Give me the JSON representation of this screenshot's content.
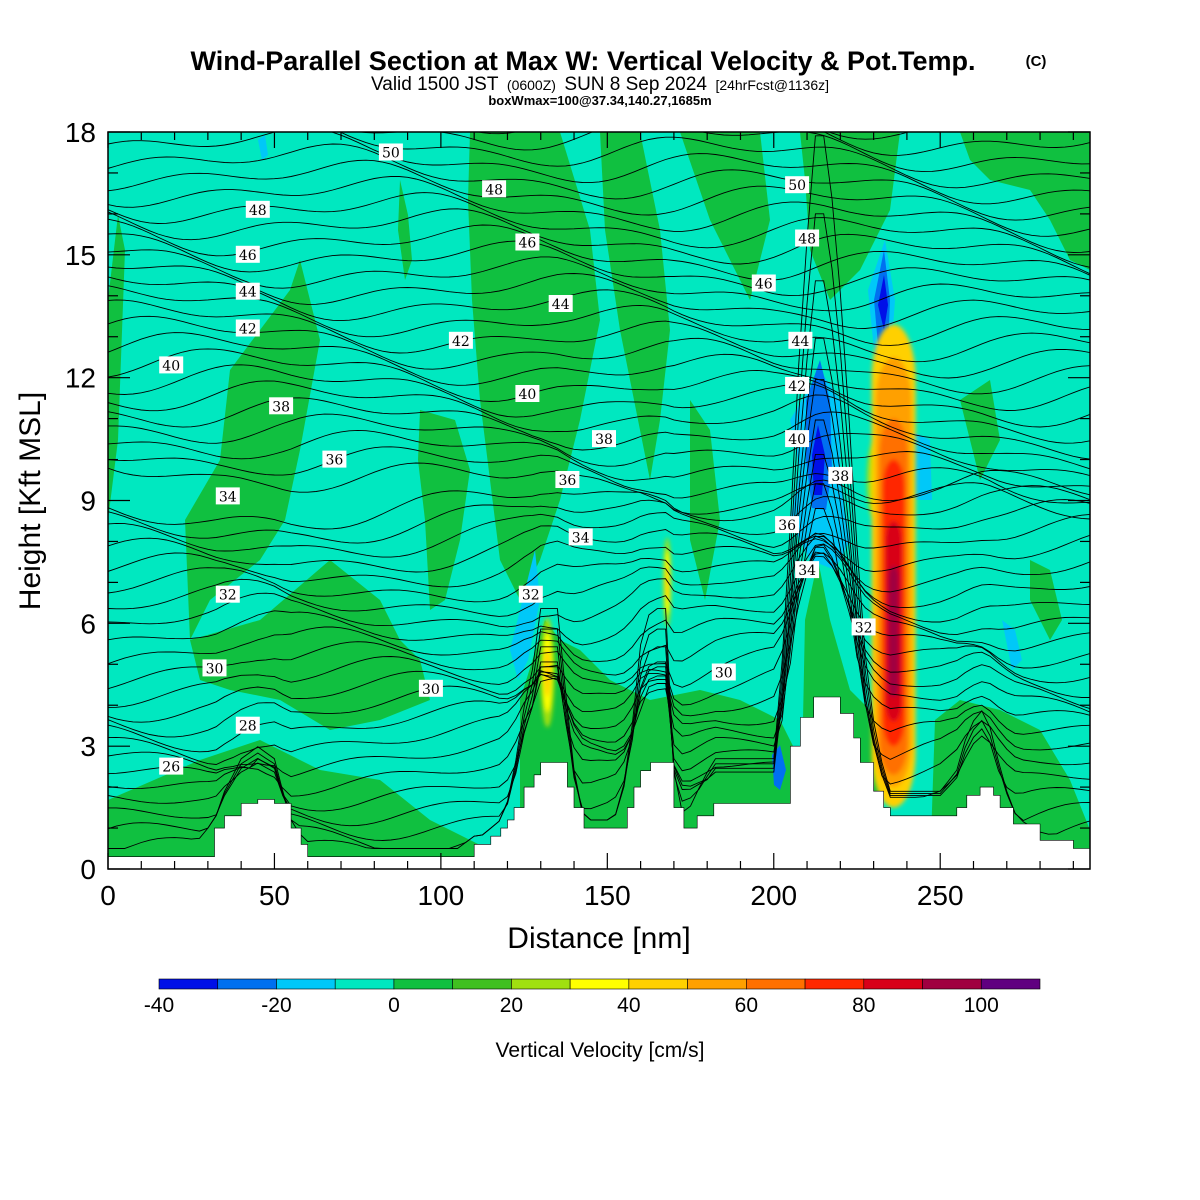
{
  "title": {
    "main": "Wind-Parallel Section at Max W: Vertical Velocity & Pot.Temp.",
    "copyright": "(C)",
    "valid_prefix": "Valid 1500 JST",
    "valid_utc": "(0600Z)",
    "valid_date": "SUN 8 Sep 2024",
    "forecast": "[24hrFcst@1136z]",
    "box": "boxWmax=100@37.34,140.27,1685m"
  },
  "chart_data": {
    "type": "heatmap",
    "xlabel": "Distance [nm]",
    "ylabel": "Height [Kft MSL]",
    "xlim": [
      0,
      295
    ],
    "ylim": [
      0,
      18
    ],
    "x_ticks": [
      0,
      50,
      100,
      150,
      200,
      250
    ],
    "y_ticks": [
      0,
      3,
      6,
      9,
      12,
      15,
      18
    ],
    "colorbar": {
      "title": "Vertical Velocity [cm/s]",
      "bounds": [
        -40,
        -30,
        -20,
        -10,
        0,
        10,
        20,
        30,
        40,
        50,
        60,
        70,
        80,
        90,
        100,
        110
      ],
      "tick_values": [
        -40,
        -20,
        0,
        20,
        40,
        60,
        80,
        100
      ],
      "tick_labels": [
        "-40",
        "-20",
        "0",
        "20",
        "40",
        "60",
        "80",
        "100"
      ],
      "colors": [
        "#0010e8",
        "#0070f0",
        "#00c8f8",
        "#00e8c0",
        "#10c040",
        "#40c020",
        "#a0e010",
        "#ffff00",
        "#ffd000",
        "#ffa000",
        "#ff7000",
        "#ff2800",
        "#d80018",
        "#a00040",
        "#600080"
      ],
      "background_level_color": "#00e8c0"
    },
    "terrain_kft": {
      "x": [
        0,
        10,
        25,
        32,
        35,
        40,
        45,
        50,
        55,
        58,
        60,
        65,
        70,
        80,
        90,
        100,
        105,
        110,
        112,
        115,
        118,
        120,
        122,
        125,
        128,
        130,
        135,
        138,
        140,
        143,
        148,
        152,
        156,
        158,
        160,
        163,
        168,
        170,
        173,
        177,
        182,
        186,
        190,
        195,
        200,
        205,
        208,
        212,
        216,
        220,
        224,
        226,
        230,
        233,
        235,
        240,
        245,
        250,
        255,
        258,
        262,
        266,
        268,
        272,
        280,
        290,
        295
      ],
      "h": [
        0.3,
        0.3,
        0.3,
        1.0,
        1.3,
        1.6,
        1.7,
        1.6,
        1.0,
        0.6,
        0.3,
        0.3,
        0.3,
        0.3,
        0.3,
        0.3,
        0.3,
        0.6,
        0.6,
        0.8,
        1.0,
        1.2,
        1.5,
        2.0,
        2.3,
        2.6,
        2.6,
        2.0,
        1.5,
        1.0,
        1.0,
        1.0,
        1.5,
        2.0,
        2.4,
        2.6,
        2.6,
        1.5,
        1.0,
        1.3,
        1.6,
        1.6,
        1.6,
        1.6,
        1.6,
        3.0,
        3.7,
        4.2,
        4.2,
        3.8,
        3.2,
        2.6,
        1.9,
        1.5,
        1.3,
        1.3,
        1.3,
        1.3,
        1.5,
        1.8,
        2.0,
        1.8,
        1.5,
        1.1,
        0.7,
        0.5,
        0.5
      ]
    },
    "vertical_velocity_features": [
      {
        "label": "updraft-max-central",
        "x": 236,
        "z": 4.8,
        "peak_cm_s": 100
      },
      {
        "label": "updraft-upper-central",
        "x": 234,
        "z": 9.5,
        "peak_cm_s": 50
      },
      {
        "label": "updraft-mid",
        "x": 168,
        "z": 7.0,
        "peak_cm_s": 40
      },
      {
        "label": "updraft-low",
        "x": 132,
        "z": 4.8,
        "peak_cm_s": 40
      },
      {
        "label": "downdraft-upper",
        "x": 213,
        "z": 10.5,
        "peak_cm_s": -40
      },
      {
        "label": "downdraft-top",
        "x": 233,
        "z": 13.8,
        "peak_cm_s": -40
      },
      {
        "label": "downdraft-low",
        "x": 203,
        "z": 2.5,
        "peak_cm_s": -20
      }
    ],
    "potential_temperature_contours_C": {
      "levels": [
        26,
        28,
        30,
        32,
        34,
        36,
        38,
        40,
        42,
        44,
        46,
        48,
        50
      ],
      "labels": [
        {
          "text": "50",
          "x": 85,
          "z": 17.5
        },
        {
          "text": "48",
          "x": 45,
          "z": 16.1
        },
        {
          "text": "48",
          "x": 116,
          "z": 16.6
        },
        {
          "text": "50",
          "x": 207,
          "z": 16.7
        },
        {
          "text": "46",
          "x": 42,
          "z": 15.0
        },
        {
          "text": "46",
          "x": 126,
          "z": 15.3
        },
        {
          "text": "48",
          "x": 210,
          "z": 15.4
        },
        {
          "text": "44",
          "x": 42,
          "z": 14.1
        },
        {
          "text": "44",
          "x": 136,
          "z": 13.8
        },
        {
          "text": "46",
          "x": 197,
          "z": 14.3
        },
        {
          "text": "42",
          "x": 42,
          "z": 13.2
        },
        {
          "text": "42",
          "x": 106,
          "z": 12.9
        },
        {
          "text": "44",
          "x": 208,
          "z": 12.9
        },
        {
          "text": "40",
          "x": 19,
          "z": 12.3
        },
        {
          "text": "42",
          "x": 207,
          "z": 11.8
        },
        {
          "text": "38",
          "x": 52,
          "z": 11.3
        },
        {
          "text": "40",
          "x": 126,
          "z": 11.6
        },
        {
          "text": "40",
          "x": 207,
          "z": 10.5
        },
        {
          "text": "38",
          "x": 149,
          "z": 10.5
        },
        {
          "text": "36",
          "x": 68,
          "z": 10.0
        },
        {
          "text": "36",
          "x": 138,
          "z": 9.5
        },
        {
          "text": "38",
          "x": 220,
          "z": 9.6
        },
        {
          "text": "34",
          "x": 36,
          "z": 9.1
        },
        {
          "text": "34",
          "x": 142,
          "z": 8.1
        },
        {
          "text": "36",
          "x": 204,
          "z": 8.4
        },
        {
          "text": "32",
          "x": 36,
          "z": 6.7
        },
        {
          "text": "32",
          "x": 127,
          "z": 6.7
        },
        {
          "text": "34",
          "x": 210,
          "z": 7.3
        },
        {
          "text": "32",
          "x": 227,
          "z": 5.9
        },
        {
          "text": "30",
          "x": 32,
          "z": 4.9
        },
        {
          "text": "30",
          "x": 97,
          "z": 4.4
        },
        {
          "text": "30",
          "x": 185,
          "z": 4.8
        },
        {
          "text": "28",
          "x": 42,
          "z": 3.5
        },
        {
          "text": "26",
          "x": 19,
          "z": 2.5
        }
      ]
    }
  }
}
